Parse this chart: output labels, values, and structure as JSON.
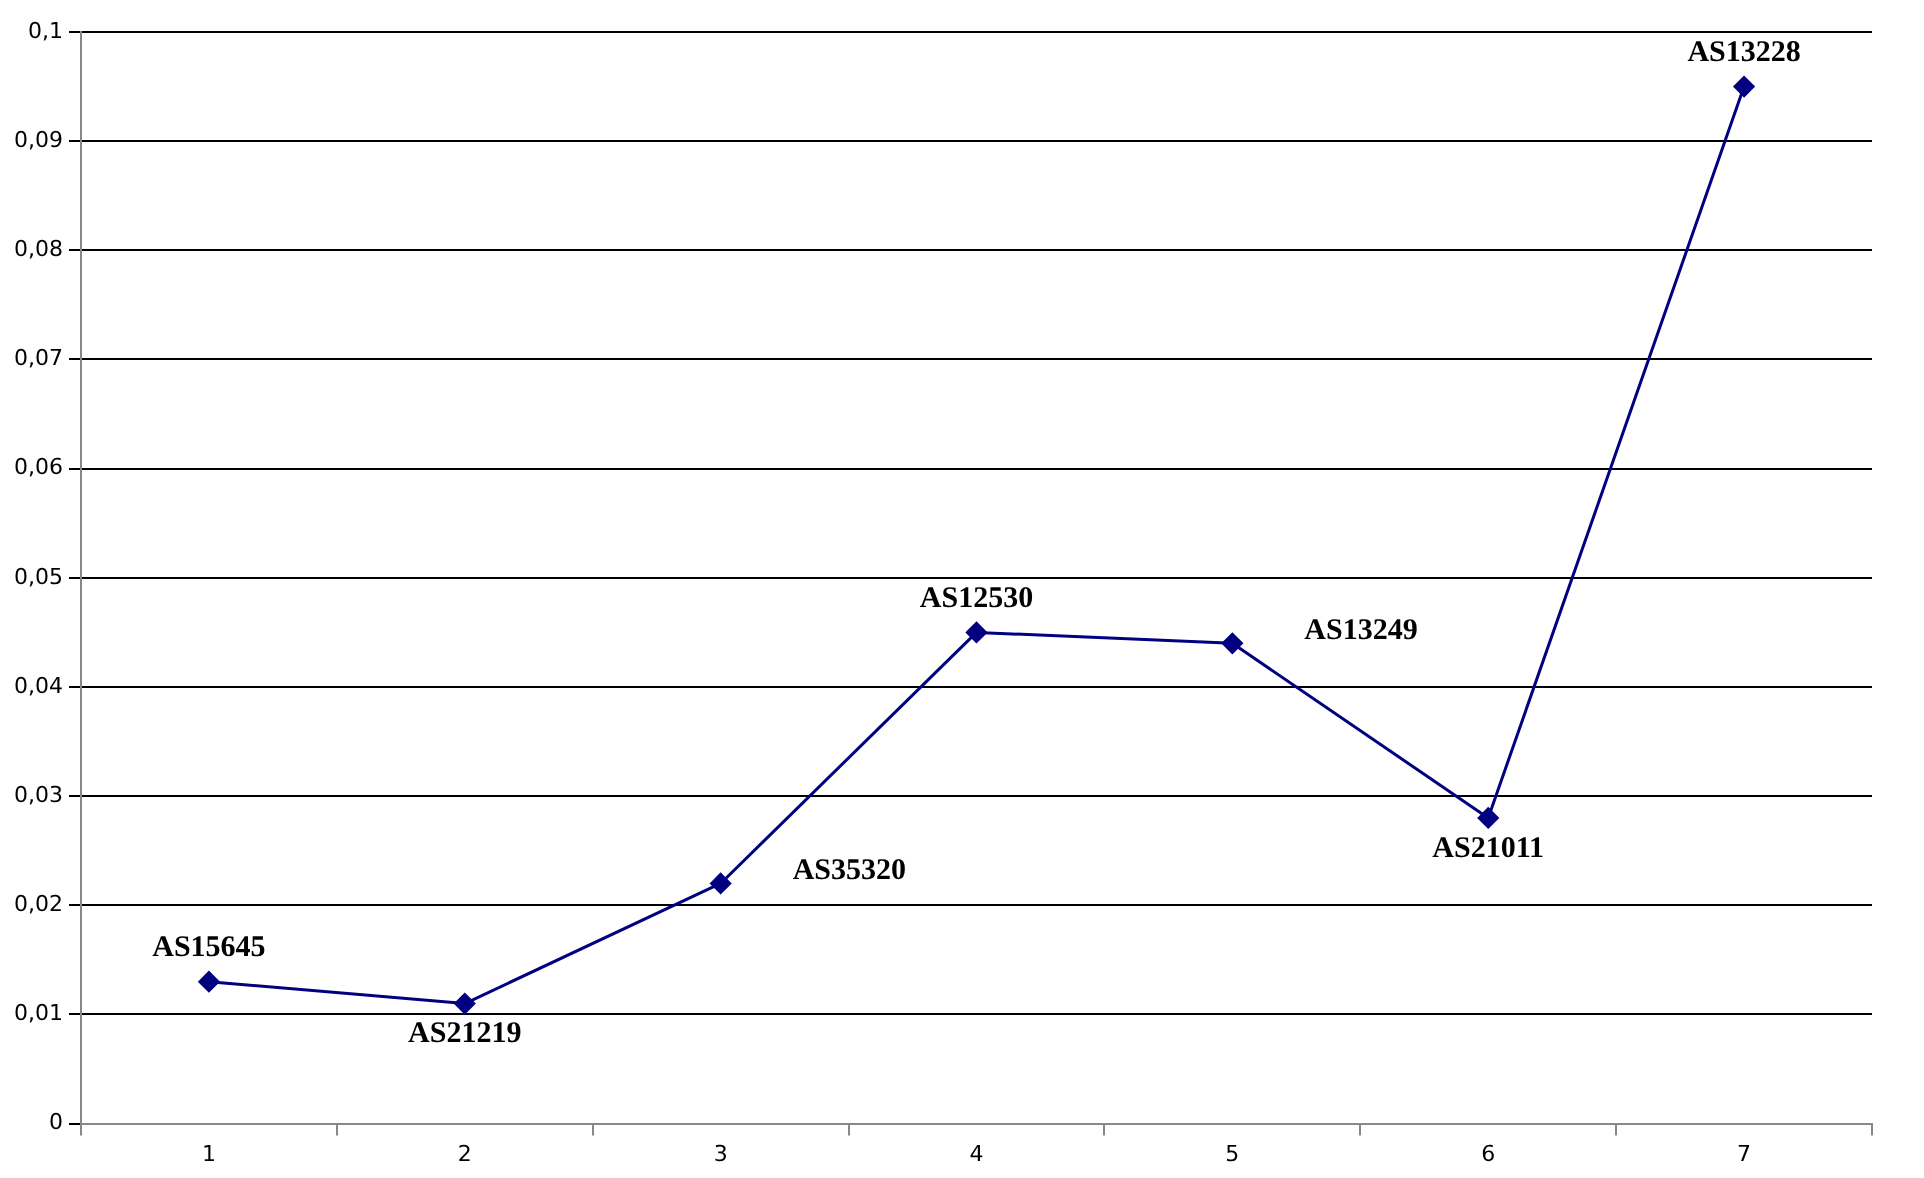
{
  "chart_data": {
    "type": "line",
    "categories": [
      "1",
      "2",
      "3",
      "4",
      "5",
      "6",
      "7"
    ],
    "series": [
      {
        "color": "#000080",
        "values": [
          0.013,
          0.011,
          0.022,
          0.045,
          0.044,
          0.028,
          0.095
        ]
      }
    ],
    "ylim": [
      0,
      0.1
    ],
    "yticks": [
      {
        "value": 0,
        "label": "0"
      },
      {
        "value": 0.01,
        "label": "0,01"
      },
      {
        "value": 0.02,
        "label": "0,02"
      },
      {
        "value": 0.03,
        "label": "0,03"
      },
      {
        "value": 0.04,
        "label": "0,04"
      },
      {
        "value": 0.05,
        "label": "0,05"
      },
      {
        "value": 0.06,
        "label": "0,06"
      },
      {
        "value": 0.07,
        "label": "0,07"
      },
      {
        "value": 0.08,
        "label": "0,08"
      },
      {
        "value": 0.09,
        "label": "0,09"
      },
      {
        "value": 0.1,
        "label": "0,1"
      }
    ],
    "grid": "y",
    "legend": false,
    "marker": "diamond",
    "line_style": "solid",
    "annotations": [
      {
        "text": "AS15645",
        "x": "1",
        "y": 0.013
      },
      {
        "text": "AS21219",
        "x": "2",
        "y": 0.011
      },
      {
        "text": "AS35320",
        "x": "3",
        "y": 0.022
      },
      {
        "text": "AS12530",
        "x": "4",
        "y": 0.045
      },
      {
        "text": "AS13249",
        "x": "5",
        "y": 0.044
      },
      {
        "text": "AS21011",
        "x": "6",
        "y": 0.028
      },
      {
        "text": "AS13228",
        "x": "7",
        "y": 0.095
      }
    ]
  }
}
